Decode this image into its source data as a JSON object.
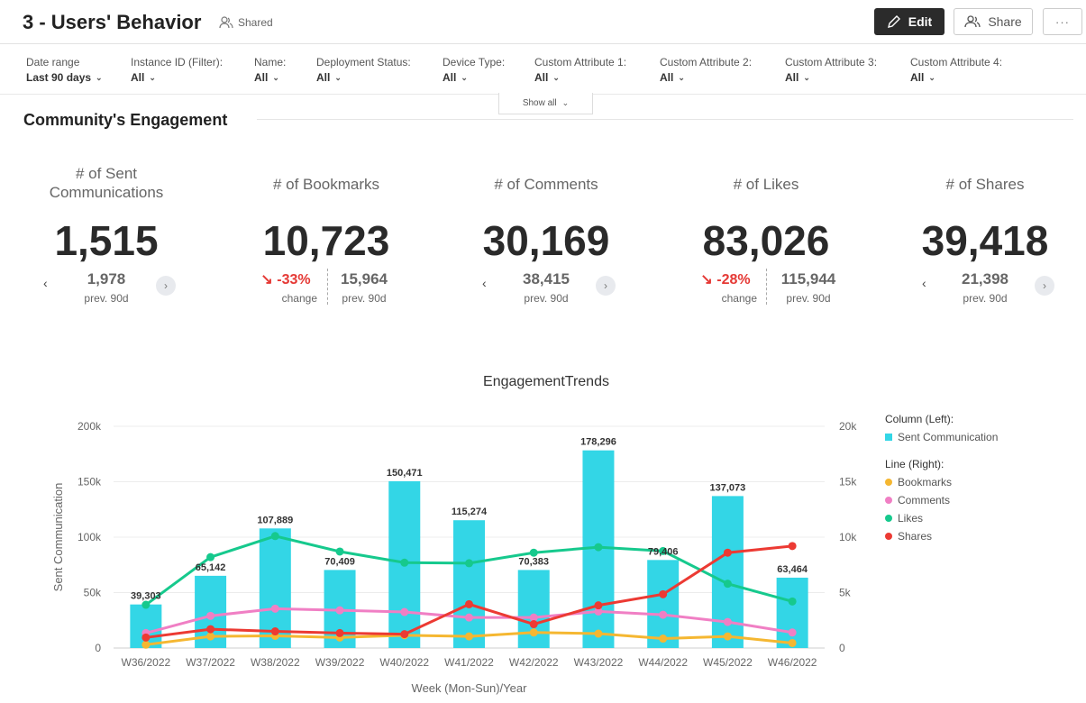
{
  "header": {
    "title": "3 - Users' Behavior",
    "shared": "Shared",
    "edit": "Edit",
    "share": "Share",
    "more": "···"
  },
  "filters": [
    {
      "label": "Date range",
      "value": "Last 90 days"
    },
    {
      "label": "Instance ID (Filter):",
      "value": "All"
    },
    {
      "label": "Name:",
      "value": "All"
    },
    {
      "label": "Deployment Status:",
      "value": "All"
    },
    {
      "label": "Device Type:",
      "value": "All"
    },
    {
      "label": "Custom Attribute 1:",
      "value": "All"
    },
    {
      "label": "Custom Attribute 2:",
      "value": "All"
    },
    {
      "label": "Custom Attribute 3:",
      "value": "All"
    },
    {
      "label": "Custom Attribute 4:",
      "value": "All"
    }
  ],
  "show_all": "Show all",
  "section_title": "Community's Engagement",
  "kpis": [
    {
      "label_line1": "# of Sent",
      "label_line2": "Communications",
      "value": "1,515",
      "prev": "1,978",
      "prev_label": "prev. 90d"
    },
    {
      "label": "# of Bookmarks",
      "value": "10,723",
      "change": "-33%",
      "change_label": "change",
      "prev": "15,964",
      "prev_label": "prev. 90d"
    },
    {
      "label": "# of Comments",
      "value": "30,169",
      "prev": "38,415",
      "prev_label": "prev. 90d"
    },
    {
      "label": "# of Likes",
      "value": "83,026",
      "change": "-28%",
      "change_label": "change",
      "prev": "115,944",
      "prev_label": "prev. 90d"
    },
    {
      "label": "# of Shares",
      "value": "39,418",
      "prev": "21,398",
      "prev_label": "prev. 90d"
    }
  ],
  "chart_data": {
    "type": "bar",
    "title": "EngagementTrends",
    "xlabel": "Week (Mon-Sun)/Year",
    "ylabel": "Sent Communication",
    "categories": [
      "W36/2022",
      "W37/2022",
      "W38/2022",
      "W39/2022",
      "W40/2022",
      "W41/2022",
      "W42/2022",
      "W43/2022",
      "W44/2022",
      "W45/2022",
      "W46/2022"
    ],
    "ylim": [
      0,
      200000
    ],
    "y2lim": [
      0,
      20000
    ],
    "y_ticks": [
      "0",
      "50k",
      "100k",
      "150k",
      "200k"
    ],
    "y2_ticks": [
      "0",
      "5k",
      "10k",
      "15k",
      "20k"
    ],
    "bars": {
      "name": "Sent Communication",
      "color": "#33d6e6",
      "values": [
        39303,
        65142,
        107889,
        70409,
        150471,
        115274,
        70383,
        178296,
        79406,
        137073,
        63464
      ],
      "labels": [
        "39,303",
        "65,142",
        "107,889",
        "70,409",
        "150,471",
        "115,274",
        "70,383",
        "178,296",
        "79,406",
        "137,073",
        "63,464"
      ]
    },
    "lines": [
      {
        "name": "Bookmarks",
        "color": "#f5b731",
        "values": [
          300,
          1050,
          1100,
          950,
          1150,
          1050,
          1400,
          1300,
          850,
          1050,
          450
        ]
      },
      {
        "name": "Comments",
        "color": "#f07fc4",
        "values": [
          1350,
          2900,
          3550,
          3400,
          3250,
          2750,
          2750,
          3300,
          3000,
          2350,
          1400
        ]
      },
      {
        "name": "Likes",
        "color": "#16c98d",
        "values": [
          3900,
          8200,
          10100,
          8700,
          7700,
          7650,
          8600,
          9100,
          8750,
          5800,
          4200
        ]
      },
      {
        "name": "Shares",
        "color": "#ec3a33",
        "values": [
          950,
          1700,
          1500,
          1350,
          1250,
          3950,
          2150,
          3850,
          4850,
          8600,
          9200
        ]
      }
    ],
    "legend": {
      "column_header": "Column (Left):",
      "line_header": "Line (Right):",
      "position": "right"
    }
  }
}
